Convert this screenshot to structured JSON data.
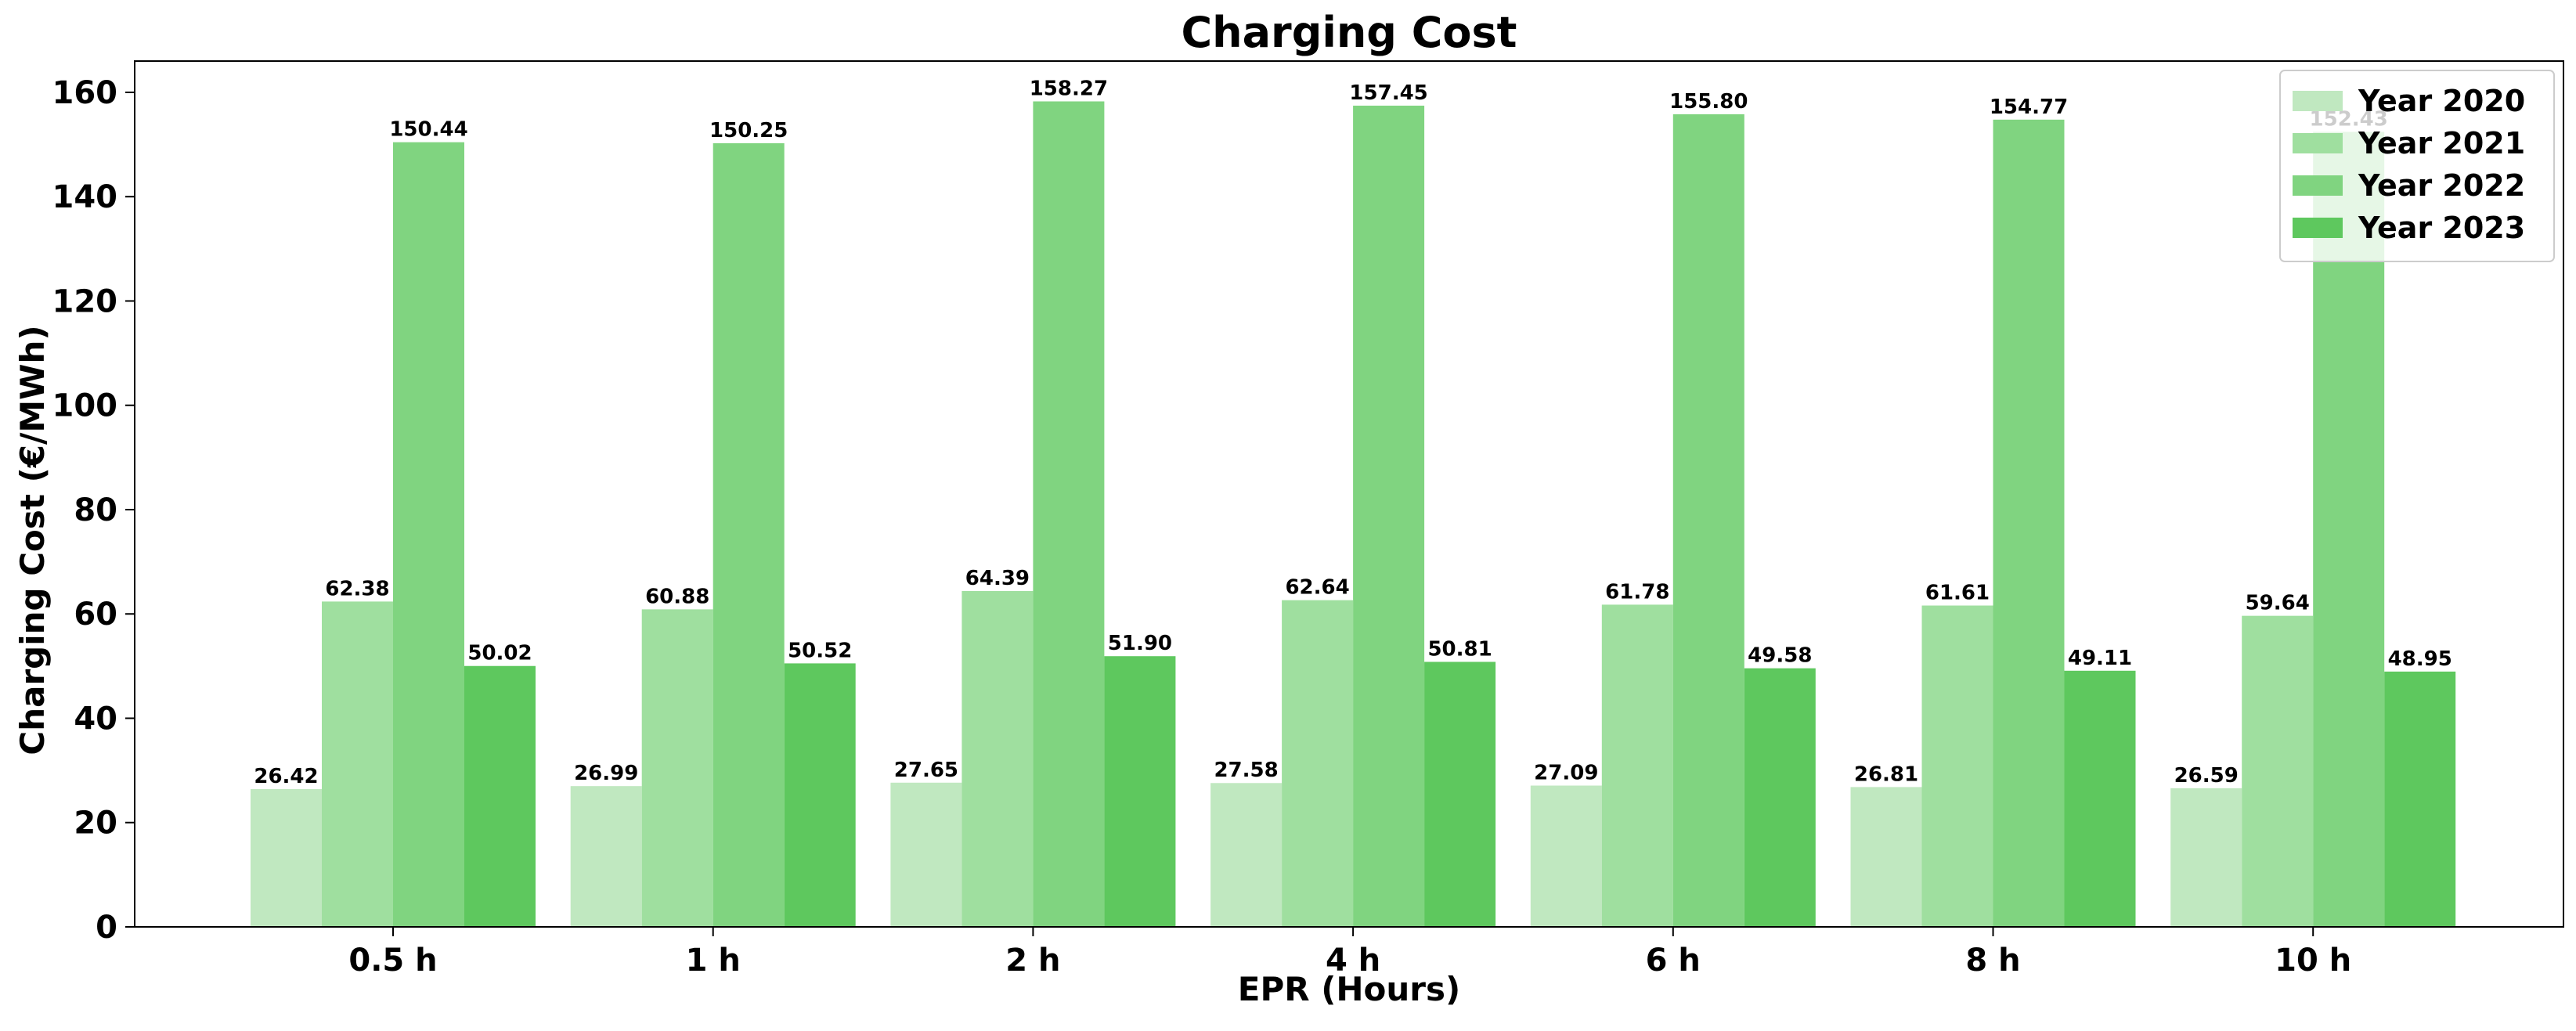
{
  "chart_data": {
    "type": "bar",
    "title": "Charging Cost",
    "xlabel": "EPR (Hours)",
    "ylabel": "Charging Cost (€/MWh)",
    "categories": [
      "0.5 h",
      "1 h",
      "2 h",
      "4 h",
      "6 h",
      "8 h",
      "10 h"
    ],
    "ylim": [
      0,
      166
    ],
    "yticks": [
      0,
      20,
      40,
      60,
      80,
      100,
      120,
      140,
      160
    ],
    "grid": false,
    "legend_position": "top-right",
    "series": [
      {
        "name": "Year 2020",
        "color": "#c0e8c0",
        "values": [
          26.42,
          26.99,
          27.65,
          27.58,
          27.09,
          26.81,
          26.59
        ]
      },
      {
        "name": "Year 2021",
        "color": "#9fdf9f",
        "values": [
          62.38,
          60.88,
          64.39,
          62.64,
          61.78,
          61.61,
          59.64
        ]
      },
      {
        "name": "Year 2022",
        "color": "#80d480",
        "values": [
          150.44,
          150.25,
          158.27,
          157.45,
          155.8,
          154.77,
          152.43
        ]
      },
      {
        "name": "Year 2023",
        "color": "#5ec85e",
        "values": [
          50.02,
          50.52,
          51.9,
          50.81,
          49.58,
          49.11,
          48.95
        ]
      }
    ]
  }
}
